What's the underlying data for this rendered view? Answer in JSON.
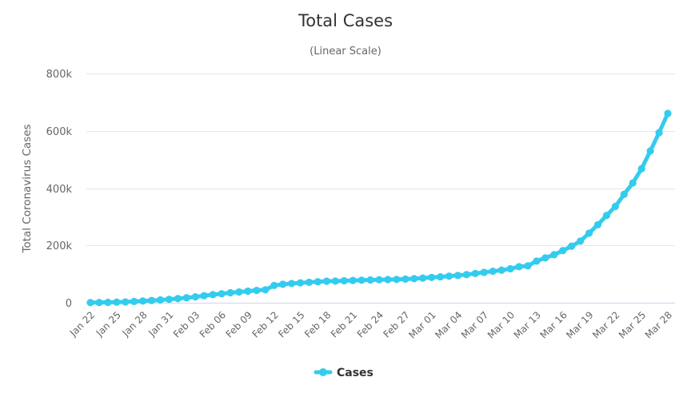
{
  "chart_data": {
    "type": "line",
    "title": "Total Cases",
    "subtitle": "(Linear Scale)",
    "ylabel": "Total Coronavirus Cases",
    "xlabel": "",
    "ylim": [
      0,
      800000
    ],
    "yticks": [
      0,
      200000,
      400000,
      600000,
      800000
    ],
    "ytick_labels": [
      "0",
      "200k",
      "400k",
      "600k",
      "800k"
    ],
    "grid": true,
    "legend_position": "bottom-center",
    "x": [
      "Jan 22",
      "Jan 23",
      "Jan 24",
      "Jan 25",
      "Jan 26",
      "Jan 27",
      "Jan 28",
      "Jan 29",
      "Jan 30",
      "Jan 31",
      "Feb 01",
      "Feb 02",
      "Feb 03",
      "Feb 04",
      "Feb 05",
      "Feb 06",
      "Feb 07",
      "Feb 08",
      "Feb 09",
      "Feb 10",
      "Feb 11",
      "Feb 12",
      "Feb 13",
      "Feb 14",
      "Feb 15",
      "Feb 16",
      "Feb 17",
      "Feb 18",
      "Feb 19",
      "Feb 20",
      "Feb 21",
      "Feb 22",
      "Feb 23",
      "Feb 24",
      "Feb 25",
      "Feb 26",
      "Feb 27",
      "Feb 28",
      "Feb 29",
      "Mar 01",
      "Mar 02",
      "Mar 03",
      "Mar 04",
      "Mar 05",
      "Mar 06",
      "Mar 07",
      "Mar 08",
      "Mar 09",
      "Mar 10",
      "Mar 11",
      "Mar 12",
      "Mar 13",
      "Mar 14",
      "Mar 15",
      "Mar 16",
      "Mar 17",
      "Mar 18",
      "Mar 19",
      "Mar 20",
      "Mar 21",
      "Mar 22",
      "Mar 23",
      "Mar 24",
      "Mar 25",
      "Mar 26",
      "Mar 27",
      "Mar 28"
    ],
    "x_tick_labels": [
      "Jan 22",
      "Jan 25",
      "Jan 28",
      "Jan 31",
      "Feb 03",
      "Feb 06",
      "Feb 09",
      "Feb 12",
      "Feb 15",
      "Feb 18",
      "Feb 21",
      "Feb 24",
      "Feb 27",
      "Mar 01",
      "Mar 04",
      "Mar 07",
      "Mar 10",
      "Mar 13",
      "Mar 16",
      "Mar 19",
      "Mar 22",
      "Mar 25",
      "Mar 28"
    ],
    "series": [
      {
        "name": "Cases",
        "color": "#33ccee",
        "values": [
          580,
          845,
          1320,
          2010,
          2800,
          4580,
          6060,
          7820,
          9830,
          11950,
          14550,
          17390,
          20630,
          24550,
          28280,
          31480,
          34880,
          37560,
          40550,
          43100,
          45170,
          60380,
          64550,
          67100,
          69260,
          71330,
          73330,
          75200,
          75700,
          76700,
          77700,
          78600,
          79400,
          80100,
          80800,
          81400,
          82700,
          84100,
          86000,
          88400,
          90400,
          92900,
          95300,
          98200,
          102000,
          106100,
          109900,
          113600,
          118600,
          125900,
          128700,
          145300,
          156400,
          167500,
          181800,
          197200,
          214900,
          242700,
          272200,
          304500,
          335900,
          378300,
          418000,
          467500,
          529600,
          593300,
          660700
        ]
      }
    ]
  }
}
